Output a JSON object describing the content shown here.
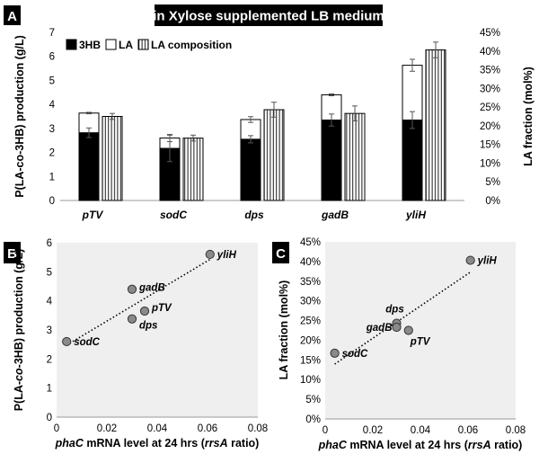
{
  "figure": {
    "title": "in Xylose supplemented LB medium",
    "panel_labels": [
      "A",
      "B",
      "C"
    ]
  },
  "chart_data": [
    {
      "panel": "A",
      "type": "bar",
      "title": "in Xylose supplemented LB medium",
      "categories": [
        "pTV",
        "sodC",
        "dps",
        "gadB",
        "yliH"
      ],
      "ylabel": "P(LA-co-3HB) production (g/L)",
      "y2label": "LA fraction (mol%)",
      "ylim": [
        0,
        7
      ],
      "y2lim": [
        0,
        45
      ],
      "yticks": [
        "0",
        "1",
        "2",
        "3",
        "4",
        "5",
        "6",
        "7"
      ],
      "y2ticks": [
        "0%",
        "5%",
        "10%",
        "15%",
        "20%",
        "25%",
        "30%",
        "35%",
        "40%",
        "45%"
      ],
      "legend": {
        "position": "top-left",
        "entries": [
          "3HB",
          "LA",
          "LA composition"
        ]
      },
      "series": [
        {
          "name": "3HB",
          "axis": "left",
          "stacked": true,
          "color": "#000000",
          "values": [
            2.82,
            2.17,
            2.55,
            3.35,
            3.35
          ],
          "errors": [
            0.2,
            0.55,
            0.15,
            0.25,
            0.35
          ]
        },
        {
          "name": "LA",
          "axis": "left",
          "stacked": true,
          "color": "#ffffff",
          "values": [
            0.82,
            0.43,
            0.82,
            1.05,
            2.28
          ],
          "errors": [
            0.03,
            0.15,
            0.12,
            0.04,
            0.25
          ]
        },
        {
          "name": "LA composition",
          "axis": "right",
          "pattern": "vertical-stripes",
          "values": [
            22.5,
            16.7,
            24.3,
            23.3,
            40.3
          ],
          "errors": [
            0.8,
            0.8,
            2.0,
            2.0,
            2.1
          ]
        }
      ]
    },
    {
      "panel": "B",
      "type": "scatter",
      "xlabel_italic": "phaC",
      "xlabel": " mRNA level at 24 hrs (",
      "xlabel_italic2": "rrsA",
      "xlabel_end": " ratio)",
      "ylabel": "P(LA-co-3HB) production (g/L)",
      "xlim": [
        0,
        0.08
      ],
      "ylim": [
        0,
        6
      ],
      "xticks": [
        "0",
        "0.02",
        "0.04",
        "0.06",
        "0.08"
      ],
      "yticks": [
        "0",
        "1",
        "2",
        "3",
        "4",
        "5",
        "6"
      ],
      "trendline": "linear-dotted",
      "points": [
        {
          "label": "sodC",
          "x": 0.004,
          "y": 2.6
        },
        {
          "label": "gadB",
          "x": 0.03,
          "y": 4.4
        },
        {
          "label": "dps",
          "x": 0.03,
          "y": 3.38
        },
        {
          "label": "pTV",
          "x": 0.035,
          "y": 3.65
        },
        {
          "label": "yliH",
          "x": 0.061,
          "y": 5.6
        }
      ]
    },
    {
      "panel": "C",
      "type": "scatter",
      "xlabel_italic": "phaC",
      "xlabel": " mRNA level at 24 hrs (",
      "xlabel_italic2": "rrsA",
      "xlabel_end": " ratio)",
      "ylabel": "LA fraction (mol%)",
      "xlim": [
        0,
        0.08
      ],
      "ylim": [
        0,
        45
      ],
      "xticks": [
        "0",
        "0.02",
        "0.04",
        "0.06",
        "0.08"
      ],
      "yticks": [
        "0%",
        "5%",
        "10%",
        "15%",
        "20%",
        "25%",
        "30%",
        "35%",
        "40%",
        "45%"
      ],
      "trendline": "linear-dotted",
      "points": [
        {
          "label": "sodC",
          "x": 0.004,
          "y": 16.7
        },
        {
          "label": "dps",
          "x": 0.03,
          "y": 24.3
        },
        {
          "label": "gadB",
          "x": 0.03,
          "y": 23.3
        },
        {
          "label": "pTV",
          "x": 0.035,
          "y": 22.5
        },
        {
          "label": "yliH",
          "x": 0.061,
          "y": 40.3
        }
      ]
    }
  ]
}
